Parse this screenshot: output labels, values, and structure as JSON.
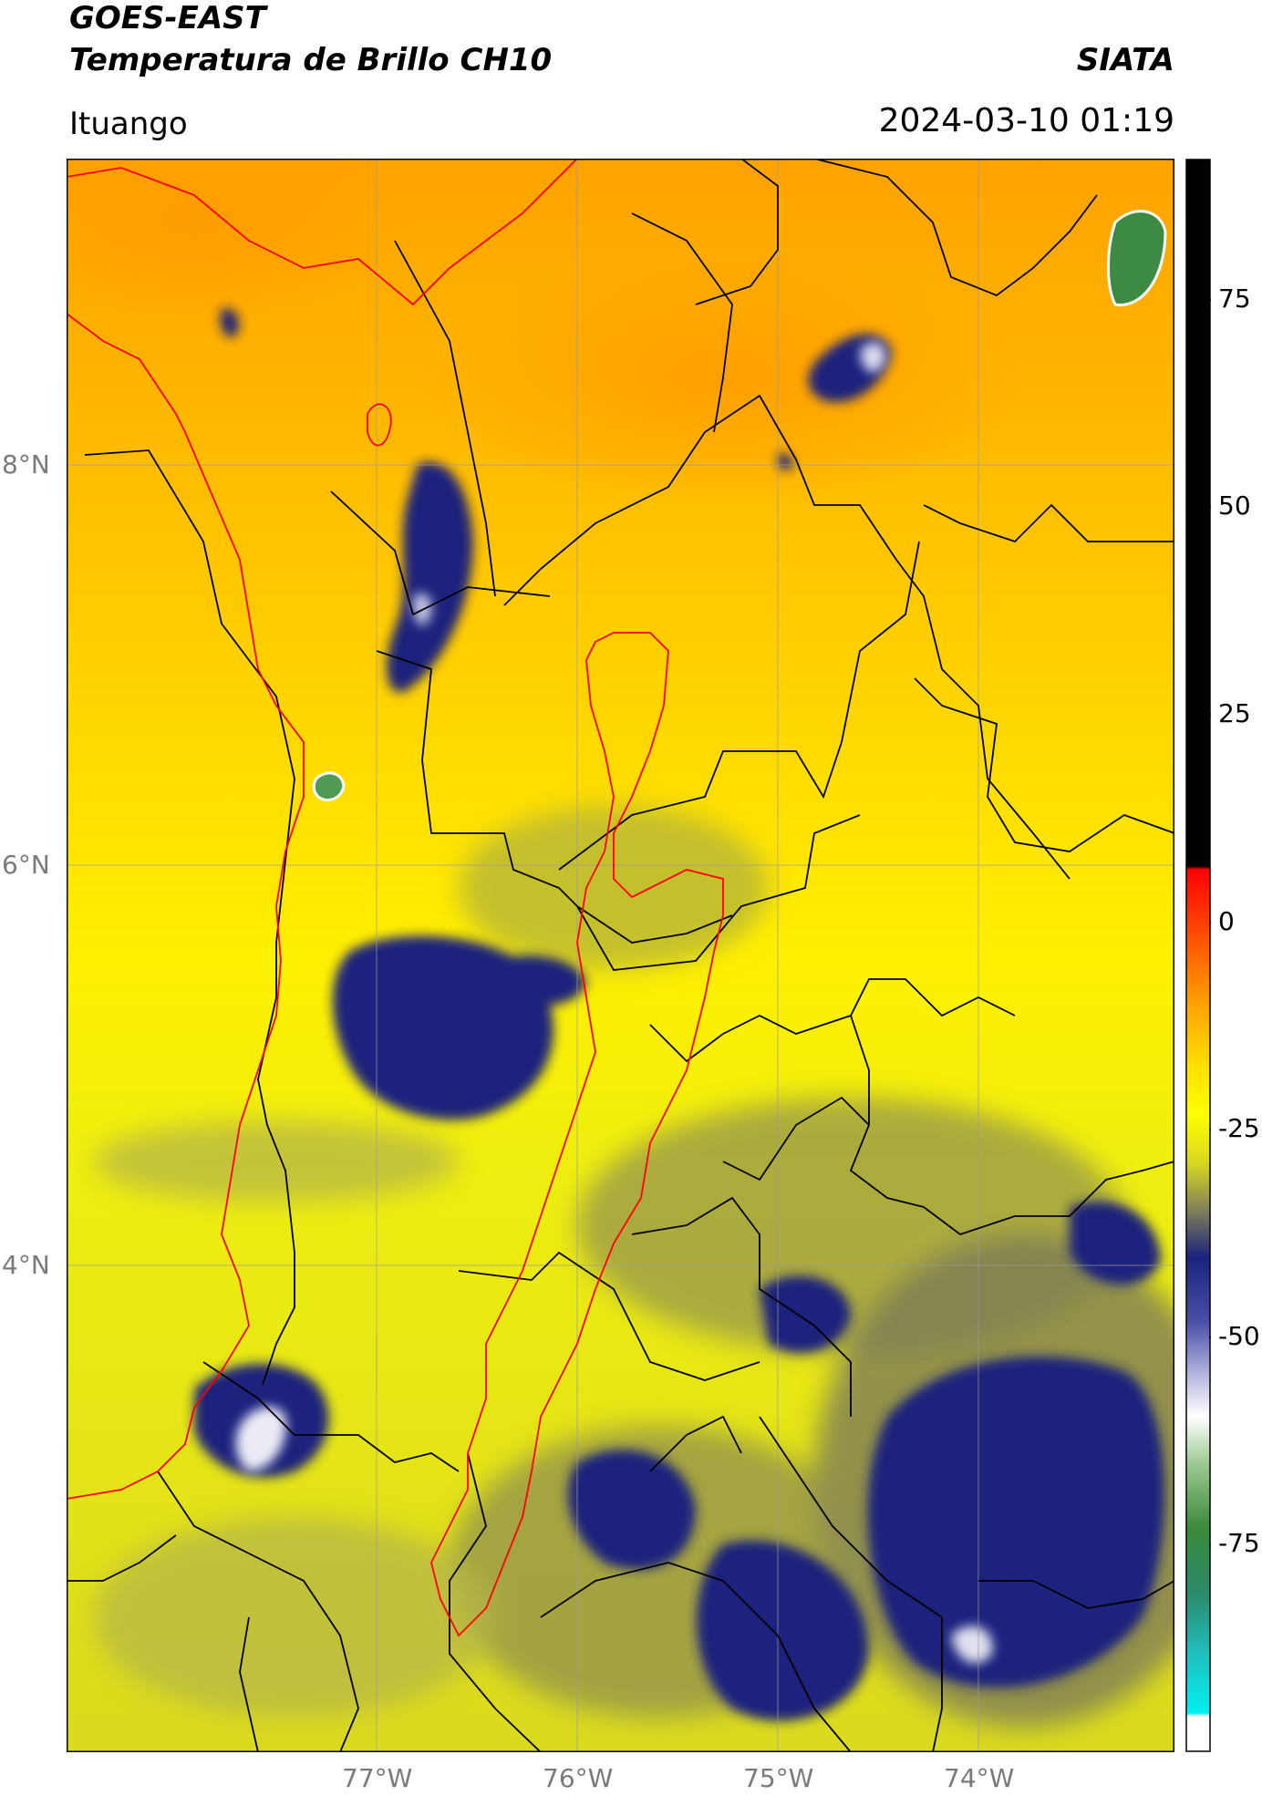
{
  "header": {
    "satellite": "GOES-EAST",
    "product": "Temperatura de Brillo CH10",
    "brand": "SIATA",
    "location": "Ituango",
    "timestamp": "2024-03-10 01:19"
  },
  "map": {
    "lat_ticks": [
      "8°N",
      "6°N",
      "4°N"
    ],
    "lon_ticks": [
      "77°W",
      "76°W",
      "75°W",
      "74°W"
    ],
    "extent": {
      "lon": [
        -78.55,
        -73.0
      ],
      "lat": [
        2.0,
        9.55
      ]
    },
    "colors": {
      "warm": "#ffa200",
      "mild": "#ffe500",
      "cool": "#d6d600",
      "cold": "#1a237e",
      "very_cold": "#e8e8f6",
      "coldest": "#3a8a3a",
      "region_border": "#ff0000",
      "admin_border": "#000000"
    }
  },
  "colorbar": {
    "labels": [
      "75",
      "50",
      "25",
      "0",
      "-25",
      "-50",
      "-75"
    ],
    "values": [
      75,
      50,
      25,
      0,
      -25,
      -50,
      -75
    ],
    "range": [
      -100,
      92
    ],
    "unit_hint": "°C"
  }
}
